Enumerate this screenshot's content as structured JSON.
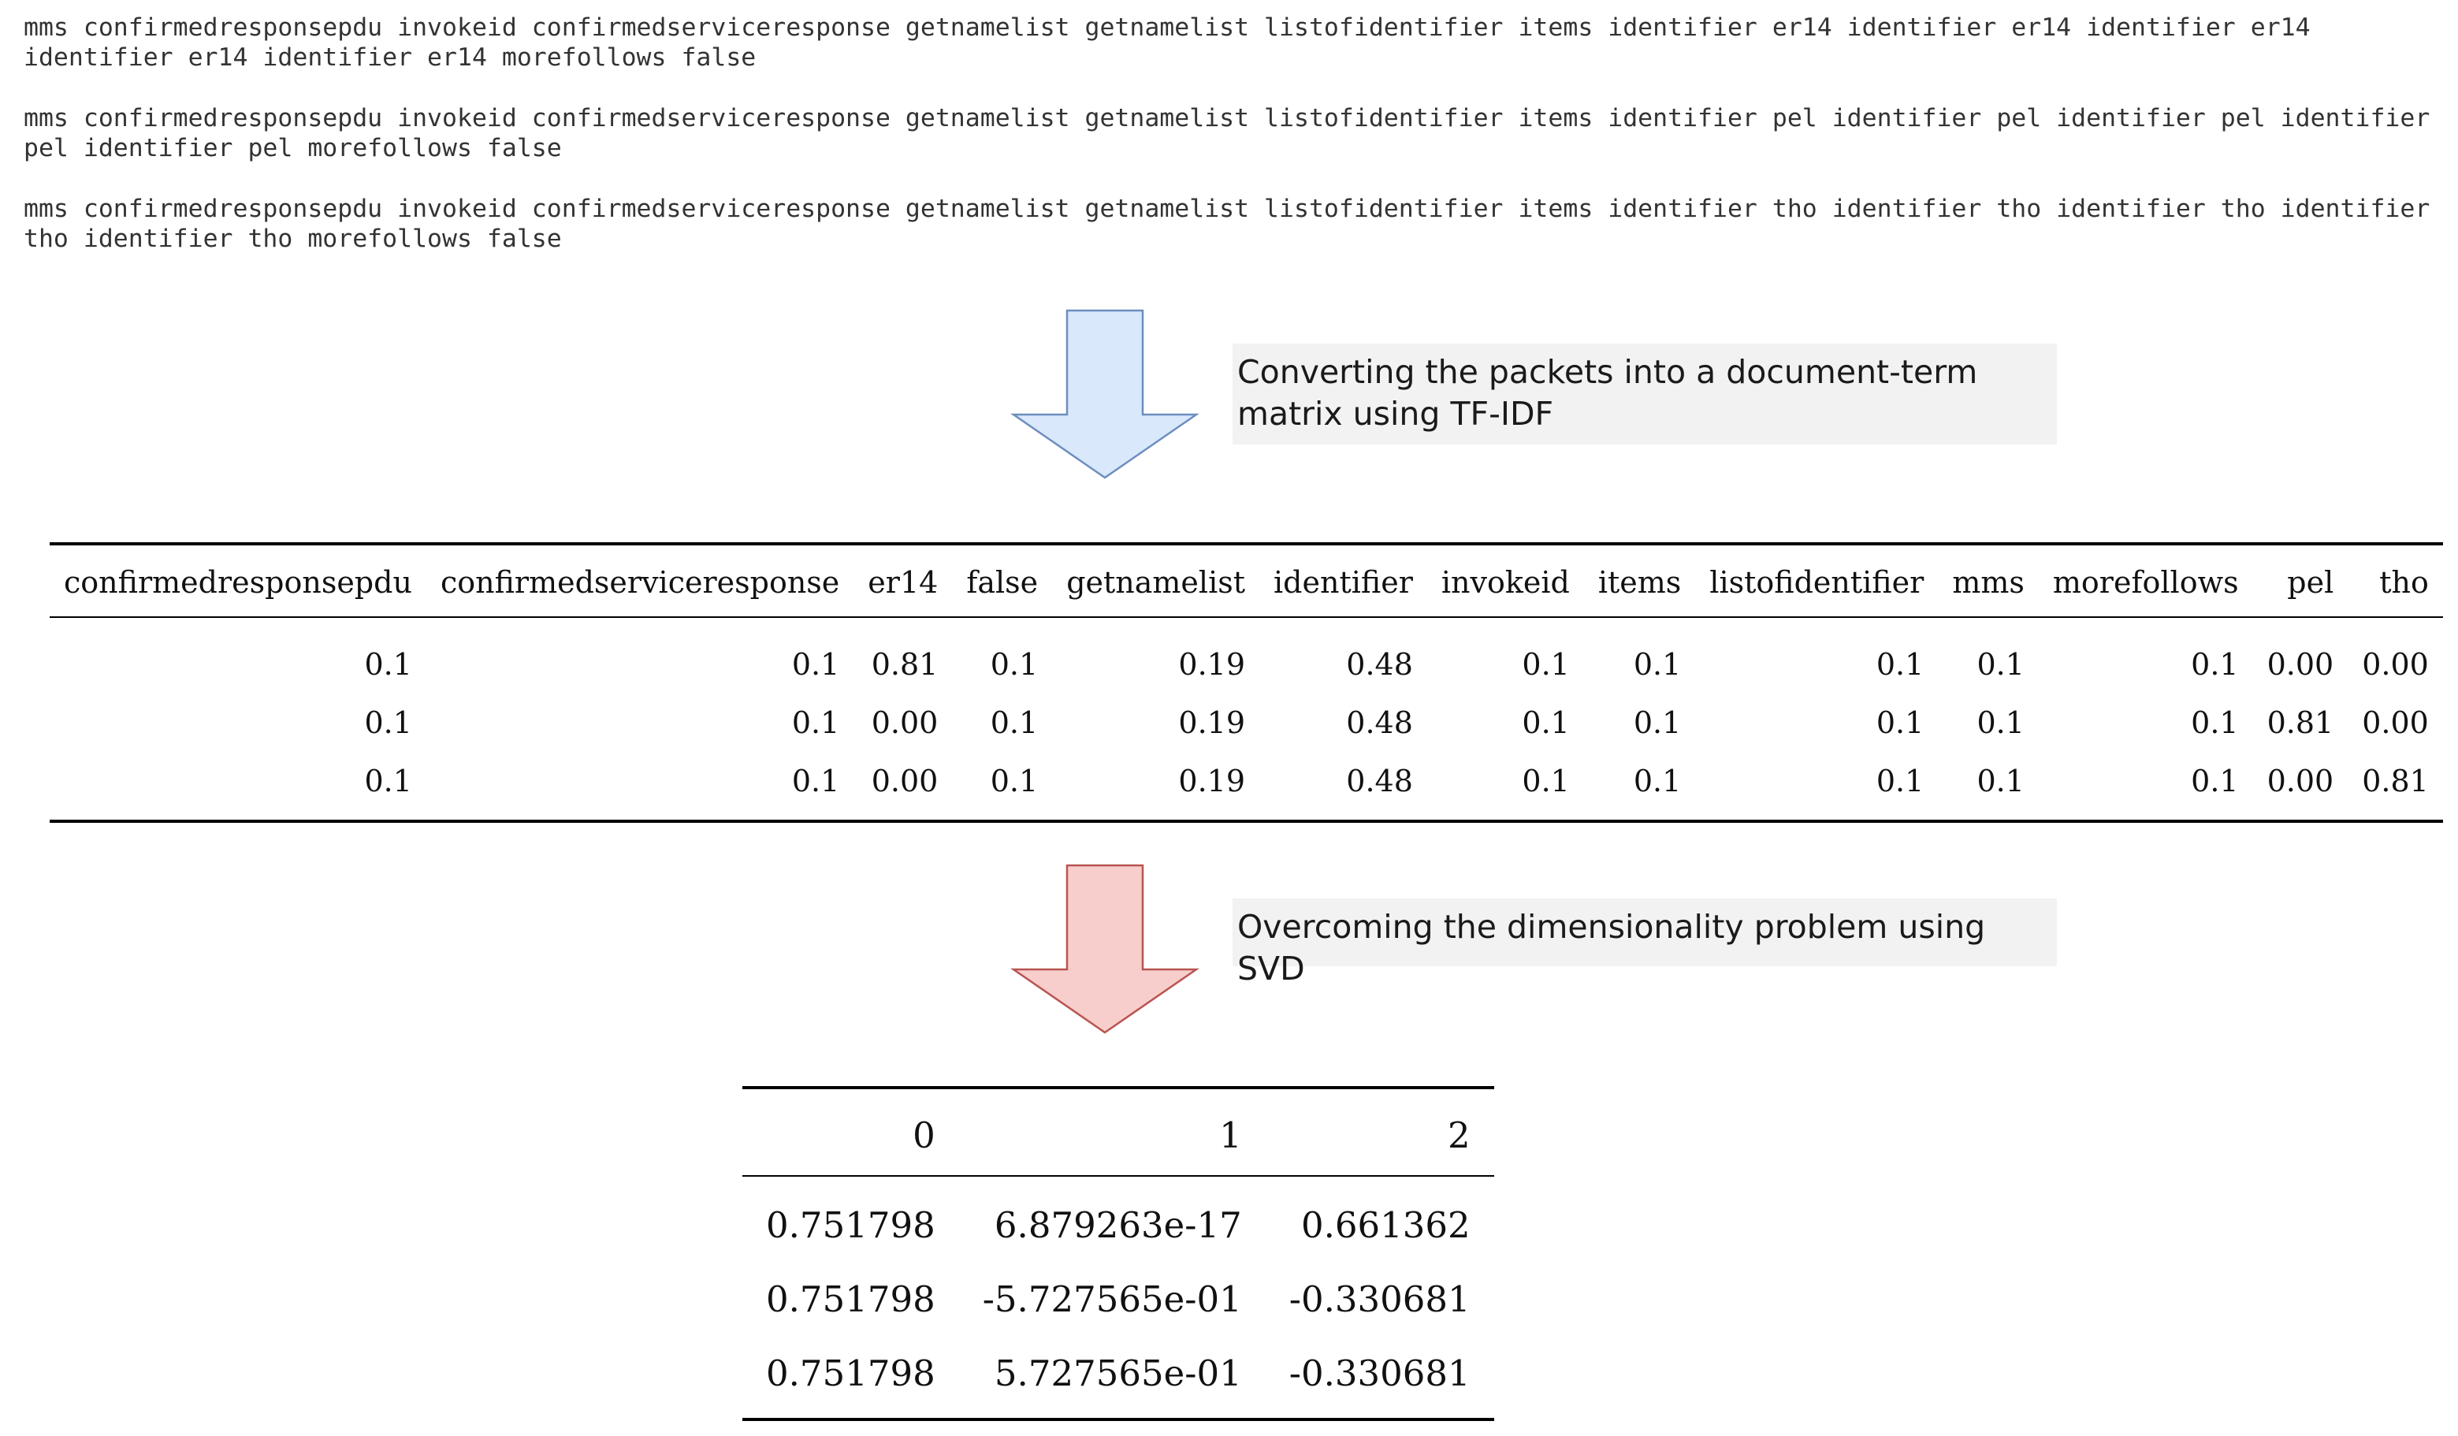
{
  "packets": [
    "mms confirmedresponsepdu invokeid confirmedserviceresponse getnamelist getnamelist listofidentifier items identifier er14 identifier er14 identifier er14 identifier er14 identifier er14 morefollows false",
    "mms confirmedresponsepdu invokeid confirmedserviceresponse getnamelist getnamelist listofidentifier items identifier pel identifier pel identifier pel identifier pel identifier pel morefollows false",
    "mms confirmedresponsepdu invokeid confirmedserviceresponse getnamelist getnamelist listofidentifier items identifier tho identifier tho identifier tho identifier tho identifier tho morefollows false"
  ],
  "steps": [
    {
      "caption": "Converting the packets into a document-term matrix using TF-IDF",
      "arrow_color": "#dae8fc",
      "arrow_stroke": "#6c8ebf"
    },
    {
      "caption": "Overcoming the dimensionality problem using SVD",
      "arrow_color": "#f8cecc",
      "arrow_stroke": "#b85450"
    }
  ],
  "tfidf_table": {
    "columns": [
      "confirmedresponsepdu",
      "confirmedserviceresponse",
      "er14",
      "false",
      "getnamelist",
      "identifier",
      "invokeid",
      "items",
      "listofidentifier",
      "mms",
      "morefollows",
      "pel",
      "tho"
    ],
    "rows": [
      [
        "0.1",
        "0.1",
        "0.81",
        "0.1",
        "0.19",
        "0.48",
        "0.1",
        "0.1",
        "0.1",
        "0.1",
        "0.1",
        "0.00",
        "0.00"
      ],
      [
        "0.1",
        "0.1",
        "0.00",
        "0.1",
        "0.19",
        "0.48",
        "0.1",
        "0.1",
        "0.1",
        "0.1",
        "0.1",
        "0.81",
        "0.00"
      ],
      [
        "0.1",
        "0.1",
        "0.00",
        "0.1",
        "0.19",
        "0.48",
        "0.1",
        "0.1",
        "0.1",
        "0.1",
        "0.1",
        "0.00",
        "0.81"
      ]
    ]
  },
  "svd_table": {
    "columns": [
      "0",
      "1",
      "2"
    ],
    "rows": [
      [
        "0.751798",
        "6.879263e-17",
        "0.661362"
      ],
      [
        "0.751798",
        "-5.727565e-01",
        "-0.330681"
      ],
      [
        "0.751798",
        "5.727565e-01",
        "-0.330681"
      ]
    ]
  }
}
